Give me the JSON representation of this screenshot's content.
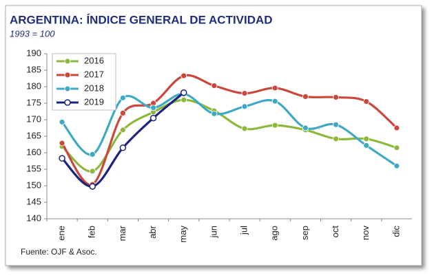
{
  "chart_data": {
    "type": "line",
    "title": "ARGENTINA: ÍNDICE GENERAL DE ACTIVIDAD",
    "subtitle": "1993 = 100",
    "source": "Fuente: OJF & Asoc.",
    "categories": [
      "ene",
      "feb",
      "mar",
      "abr",
      "may",
      "jun",
      "jul",
      "ago",
      "sep",
      "oct",
      "nov",
      "dic"
    ],
    "series": [
      {
        "name": "2016",
        "color": "#8db83b",
        "values": [
          161.9,
          154.4,
          166.9,
          172.3,
          176,
          172.7,
          167.3,
          168.3,
          166.9,
          164.2,
          164.2,
          161.5
        ]
      },
      {
        "name": "2017",
        "color": "#c9473b",
        "values": [
          162.9,
          150.4,
          172,
          175,
          183.3,
          180.3,
          178,
          179.6,
          177,
          176.8,
          175.5,
          167.5
        ]
      },
      {
        "name": "2018",
        "color": "#3fa9c4",
        "values": [
          169.3,
          159.5,
          176.6,
          173.6,
          177.8,
          171.8,
          174,
          175.6,
          167.5,
          168.5,
          162.2,
          156
        ]
      },
      {
        "name": "2019",
        "color": "#1a237e",
        "values": [
          158.3,
          149.8,
          161.5,
          170.5,
          178.2,
          null,
          null,
          null,
          null,
          null,
          null,
          null
        ]
      }
    ],
    "ylim": [
      140,
      190
    ],
    "yticks": [
      140,
      145,
      150,
      155,
      160,
      165,
      170,
      175,
      180,
      185,
      190
    ],
    "grid": false,
    "smooth": true,
    "legend": "upper-left"
  }
}
